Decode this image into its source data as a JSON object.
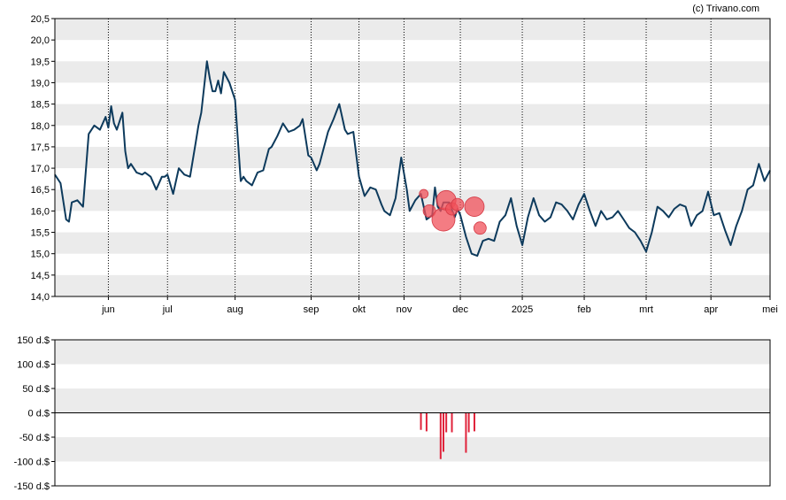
{
  "copyright": "(c) Trivano.com",
  "colors": {
    "line": "#0d3a5c",
    "band": "#ebebeb",
    "bubble": "#f0505a",
    "bar": "#e0223a",
    "frame": "#000000"
  },
  "chart_data": [
    {
      "type": "line",
      "title": "",
      "ylim": [
        14.0,
        20.5
      ],
      "y_ticks": [
        "14,0",
        "14,5",
        "15,0",
        "15,5",
        "16,0",
        "16,5",
        "17,0",
        "17,5",
        "18,0",
        "18,5",
        "19,0",
        "19,5",
        "20,0",
        "20,5"
      ],
      "y_tick_values": [
        14.0,
        14.5,
        15.0,
        15.5,
        16.0,
        16.5,
        17.0,
        17.5,
        18.0,
        18.5,
        19.0,
        19.5,
        20.0,
        20.5
      ],
      "x_ticks": [
        "jun",
        "jul",
        "aug",
        "sep",
        "okt",
        "nov",
        "dec",
        "2025",
        "feb",
        "mrt",
        "apr",
        "mei"
      ],
      "x_tick_days": [
        19,
        40,
        64,
        91,
        108,
        124,
        144,
        166,
        188,
        210,
        233,
        254
      ],
      "x_range_days": [
        0,
        254
      ],
      "vertical_gridlines": "dotted",
      "series": [
        {
          "x_days": [
            0,
            2,
            4,
            5,
            6,
            8,
            10,
            12,
            14,
            16,
            18,
            19,
            20,
            21,
            22,
            24,
            25,
            26,
            27,
            29,
            31,
            32,
            34,
            36,
            38,
            39,
            40,
            42,
            44,
            46,
            48,
            50,
            51,
            52,
            54,
            55,
            56,
            57,
            58,
            59,
            60,
            62,
            64,
            66,
            67,
            68,
            70,
            72,
            74,
            76,
            77,
            79,
            81,
            83,
            85,
            87,
            88,
            90,
            91,
            93,
            94,
            96,
            97,
            99,
            101,
            103,
            104,
            106,
            108,
            110,
            112,
            114,
            116,
            117,
            119,
            121,
            123,
            125,
            126,
            128,
            130,
            132,
            134,
            135,
            136,
            137,
            138,
            140,
            142,
            143,
            144,
            146,
            148,
            150,
            152,
            154,
            156,
            158,
            160,
            162,
            164,
            166,
            168,
            170,
            172,
            174,
            176,
            178,
            180,
            182,
            184,
            186,
            188,
            190,
            192,
            194,
            196,
            198,
            200,
            202,
            204,
            206,
            208,
            210,
            212,
            214,
            216,
            218,
            220,
            222,
            224,
            226,
            228,
            230,
            232,
            234,
            236,
            238,
            240,
            242,
            244,
            246,
            248,
            250,
            252,
            254
          ],
          "y": [
            16.85,
            16.65,
            15.8,
            15.75,
            16.2,
            16.25,
            16.1,
            17.8,
            18.0,
            17.9,
            18.2,
            17.95,
            18.45,
            18.05,
            17.9,
            18.3,
            17.4,
            17.0,
            17.1,
            16.9,
            16.85,
            16.9,
            16.8,
            16.5,
            16.8,
            16.8,
            16.85,
            16.4,
            17.0,
            16.85,
            16.8,
            17.6,
            18.0,
            18.3,
            19.5,
            19.1,
            18.8,
            18.8,
            19.05,
            18.75,
            19.25,
            19.0,
            18.6,
            16.7,
            16.8,
            16.7,
            16.6,
            16.9,
            16.95,
            17.45,
            17.5,
            17.75,
            18.05,
            17.85,
            17.9,
            18.0,
            18.15,
            17.3,
            17.25,
            16.95,
            17.1,
            17.6,
            17.85,
            18.15,
            18.5,
            17.9,
            17.8,
            17.85,
            16.8,
            16.35,
            16.55,
            16.5,
            16.15,
            16.0,
            15.9,
            16.3,
            17.25,
            16.5,
            16.0,
            16.25,
            16.4,
            15.8,
            15.9,
            16.55,
            16.1,
            16.0,
            16.2,
            16.2,
            15.85,
            16.05,
            15.9,
            15.4,
            15.0,
            14.95,
            15.3,
            15.35,
            15.3,
            15.75,
            15.9,
            16.3,
            15.65,
            15.2,
            15.85,
            16.3,
            15.9,
            15.75,
            15.85,
            16.2,
            16.15,
            16.0,
            15.8,
            16.15,
            16.4,
            16.0,
            15.65,
            16.0,
            15.8,
            15.85,
            16.0,
            15.8,
            15.6,
            15.5,
            15.3,
            15.05,
            15.5,
            16.1,
            16.0,
            15.85,
            16.05,
            16.15,
            16.1,
            15.65,
            15.9,
            16.0,
            16.45,
            15.9,
            15.95,
            15.55,
            15.2,
            15.65,
            16.0,
            16.5,
            16.6,
            17.1,
            16.7,
            16.95
          ]
        }
      ],
      "markers": [
        {
          "x_day": 131,
          "y": 16.4,
          "size": 1
        },
        {
          "x_day": 133,
          "y": 16.0,
          "size": 2
        },
        {
          "x_day": 138,
          "y": 15.8,
          "size": 5
        },
        {
          "x_day": 139,
          "y": 16.25,
          "size": 4
        },
        {
          "x_day": 141,
          "y": 16.05,
          "size": 2
        },
        {
          "x_day": 143,
          "y": 16.15,
          "size": 2
        },
        {
          "x_day": 149,
          "y": 16.1,
          "size": 4
        },
        {
          "x_day": 151,
          "y": 15.6,
          "size": 2
        }
      ]
    },
    {
      "type": "bar",
      "title": "",
      "ylim": [
        -150,
        150
      ],
      "y_ticks": [
        "150 d.$",
        "100 d.$",
        "50 d.$",
        "0 d.$",
        "-50 d.$",
        "-100 d.$",
        "-150 d.$"
      ],
      "y_tick_values": [
        150,
        100,
        50,
        0,
        -50,
        -100,
        -150
      ],
      "x_range_days": [
        0,
        254
      ],
      "bars": [
        {
          "x_day": 130,
          "value": -35
        },
        {
          "x_day": 132,
          "value": -38
        },
        {
          "x_day": 137,
          "value": -95
        },
        {
          "x_day": 138,
          "value": -80
        },
        {
          "x_day": 139,
          "value": -40
        },
        {
          "x_day": 141,
          "value": -40
        },
        {
          "x_day": 146,
          "value": -82
        },
        {
          "x_day": 147,
          "value": -40
        },
        {
          "x_day": 149,
          "value": -38
        }
      ]
    }
  ]
}
